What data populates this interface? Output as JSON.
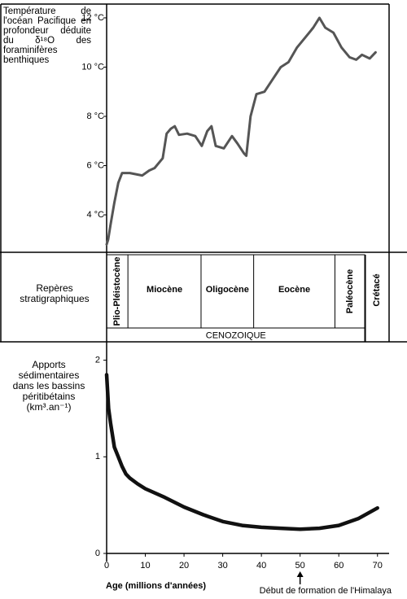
{
  "chart_data": [
    {
      "type": "line",
      "ylabel": "Température de l'océan Pacifique en profondeur déduite du δ¹⁸O des foraminifères benthiques",
      "x": [
        0,
        0.4,
        1,
        2,
        3,
        4,
        6,
        9.2,
        11,
        12.4,
        14.5,
        15.5,
        16.6,
        17.6,
        18.7,
        20.8,
        22.9,
        24.6,
        26,
        27.1,
        28.2,
        30.3,
        32.4,
        33.8,
        35.5,
        36.1,
        37.2,
        38.7,
        40.8,
        42.9,
        45,
        47,
        49.2,
        51.3,
        53.4,
        55,
        56.5,
        58.6,
        60.7,
        62.8,
        64.5,
        66,
        68,
        69.5
      ],
      "values": [
        2.8,
        3.0,
        3.6,
        4.5,
        5.3,
        5.7,
        5.7,
        5.6,
        5.8,
        5.9,
        6.3,
        7.3,
        7.5,
        7.6,
        7.25,
        7.3,
        7.2,
        6.8,
        7.4,
        7.6,
        6.8,
        6.7,
        7.2,
        6.9,
        6.5,
        6.4,
        8.0,
        8.9,
        9.0,
        9.5,
        10.0,
        10.2,
        10.8,
        11.2,
        11.6,
        12.0,
        11.6,
        11.4,
        10.8,
        10.4,
        10.3,
        10.5,
        10.35,
        10.6
      ],
      "color": "#555555",
      "xlim": [
        0,
        73
      ],
      "ylim": [
        2.48,
        12.56
      ],
      "yticks": [
        {
          "value": 4,
          "label": "4 °C"
        },
        {
          "value": 6,
          "label": "6 °C"
        },
        {
          "value": 8,
          "label": "8 °C"
        },
        {
          "value": 10,
          "label": "10 °C"
        },
        {
          "value": 12,
          "label": "12 °C"
        }
      ]
    },
    {
      "type": "timeline",
      "ylabel": "Repères stratigraphiques",
      "xlim": [
        0,
        73
      ],
      "periods": [
        {
          "name": "Plio-Pléistocène",
          "start": 0,
          "end": 5.5,
          "orientation": "vertical"
        },
        {
          "name": "Miocène",
          "start": 5.5,
          "end": 24.4,
          "orientation": "horizontal"
        },
        {
          "name": "Oligocène",
          "start": 24.4,
          "end": 38,
          "orientation": "horizontal"
        },
        {
          "name": "Eocène",
          "start": 38,
          "end": 59,
          "orientation": "horizontal"
        },
        {
          "name": "Paléocène",
          "start": 59,
          "end": 66.8,
          "orientation": "vertical"
        }
      ],
      "era": {
        "name": "CENOZOIQUE",
        "start": 0,
        "end": 66.8
      },
      "after": {
        "name": "Crétacé",
        "start": 66.8,
        "orientation": "vertical"
      }
    },
    {
      "type": "line",
      "ylabel": "Apports sédimentaires dans les bassins péritibétains (km³.an⁻¹)",
      "x": [
        0,
        0.5,
        1,
        2,
        3,
        4,
        5,
        6,
        8,
        10,
        15,
        20,
        25,
        30,
        35,
        40,
        45,
        50,
        55,
        60,
        65,
        70
      ],
      "values": [
        1.85,
        1.5,
        1.35,
        1.1,
        1.0,
        0.9,
        0.82,
        0.78,
        0.72,
        0.67,
        0.58,
        0.48,
        0.4,
        0.33,
        0.29,
        0.27,
        0.26,
        0.25,
        0.26,
        0.29,
        0.36,
        0.47
      ],
      "color": "#111111",
      "xlim": [
        0,
        73
      ],
      "ylim": [
        0,
        2.19
      ],
      "yticks": [
        0,
        1,
        2
      ],
      "xticks": [
        0,
        10,
        20,
        30,
        40,
        50,
        60,
        70
      ],
      "xlabel": "Age (millions d'années)",
      "annotation": {
        "text": "Début de formation de l'Himalaya",
        "x": 50
      }
    }
  ]
}
